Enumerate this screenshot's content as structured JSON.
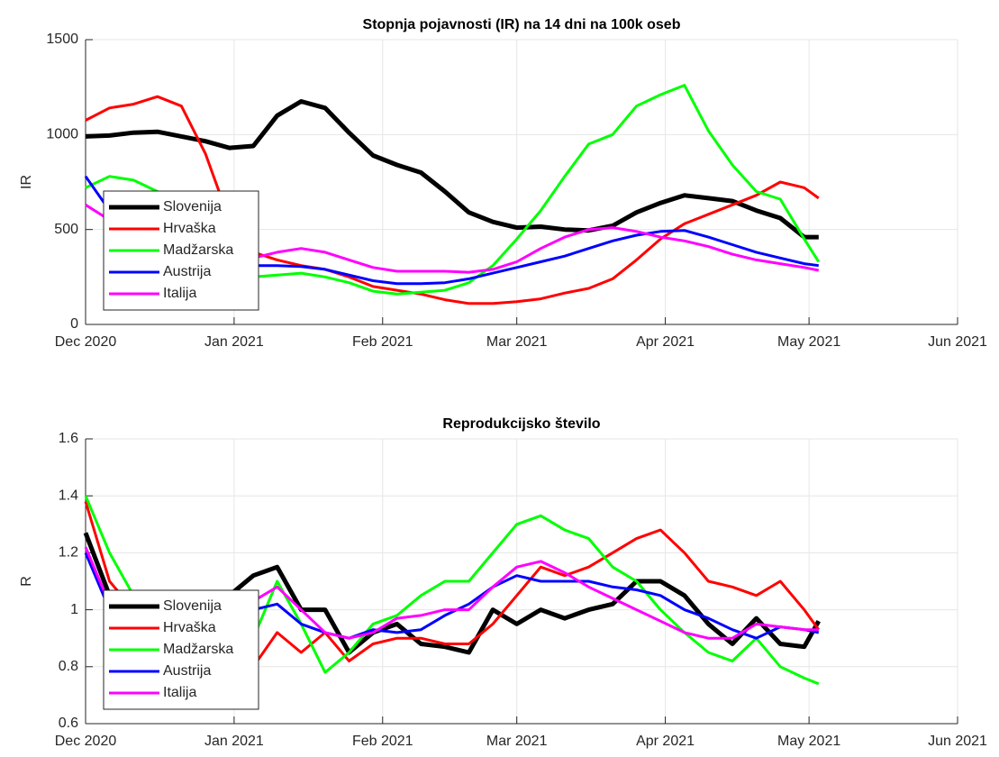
{
  "chart_data": [
    {
      "type": "line",
      "title": "Stopnja pojavnosti (IR) na 14 dni na 100k oseb",
      "ylabel": "IR",
      "x": [
        0,
        5,
        10,
        15,
        20,
        25,
        30,
        35,
        40,
        45,
        50,
        55,
        60,
        65,
        70,
        75,
        80,
        85,
        90,
        95,
        100,
        105,
        110,
        115,
        120,
        125,
        130,
        135,
        140,
        145,
        150,
        153
      ],
      "xlim": [
        0,
        182
      ],
      "xticks": [
        {
          "value": 0,
          "label": "Dec 2020"
        },
        {
          "value": 31,
          "label": "Jan 2021"
        },
        {
          "value": 62,
          "label": "Feb 2021"
        },
        {
          "value": 90,
          "label": "Mar 2021"
        },
        {
          "value": 121,
          "label": "Apr 2021"
        },
        {
          "value": 151,
          "label": "May 2021"
        },
        {
          "value": 182,
          "label": "Jun 2021"
        }
      ],
      "ylim": [
        0,
        1500
      ],
      "yticks": [
        0,
        500,
        1000,
        1500
      ],
      "grid": true,
      "legend": "southwest",
      "series": [
        {
          "name": "Slovenija",
          "color": "#000000",
          "values": [
            990,
            995,
            1010,
            1015,
            990,
            965,
            930,
            940,
            1100,
            1175,
            1140,
            1010,
            890,
            840,
            800,
            700,
            590,
            540,
            510,
            515,
            500,
            495,
            520,
            590,
            640,
            680,
            665,
            650,
            600,
            560,
            460,
            460
          ]
        },
        {
          "name": "Hrvaška",
          "color": "#ff0000",
          "values": [
            1075,
            1140,
            1160,
            1200,
            1150,
            900,
            550,
            380,
            340,
            310,
            290,
            250,
            200,
            180,
            160,
            130,
            110,
            110,
            120,
            135,
            165,
            190,
            240,
            340,
            450,
            530,
            580,
            630,
            680,
            750,
            720,
            665
          ]
        },
        {
          "name": "Madžarska",
          "color": "#00ff00",
          "values": [
            720,
            780,
            760,
            700,
            600,
            500,
            320,
            250,
            260,
            270,
            250,
            220,
            175,
            160,
            170,
            180,
            220,
            310,
            450,
            600,
            780,
            950,
            1000,
            1150,
            1210,
            1260,
            1020,
            840,
            700,
            660,
            450,
            330
          ]
        },
        {
          "name": "Austrija",
          "color": "#0000ff",
          "values": [
            780,
            600,
            480,
            380,
            340,
            330,
            320,
            310,
            310,
            305,
            290,
            260,
            230,
            215,
            215,
            220,
            240,
            270,
            300,
            330,
            360,
            400,
            440,
            470,
            490,
            495,
            460,
            420,
            380,
            350,
            320,
            310
          ]
        },
        {
          "name": "Italija",
          "color": "#ff00ff",
          "values": [
            630,
            550,
            500,
            460,
            420,
            380,
            370,
            350,
            380,
            400,
            380,
            340,
            300,
            280,
            280,
            280,
            275,
            290,
            330,
            400,
            460,
            500,
            510,
            490,
            460,
            440,
            410,
            370,
            340,
            320,
            300,
            285
          ]
        }
      ]
    },
    {
      "type": "line",
      "title": "Reprodukcijsko število",
      "ylabel": "R",
      "x": [
        0,
        5,
        10,
        15,
        20,
        25,
        30,
        35,
        40,
        45,
        50,
        55,
        60,
        65,
        70,
        75,
        80,
        85,
        90,
        95,
        100,
        105,
        110,
        115,
        120,
        125,
        130,
        135,
        140,
        145,
        150,
        153
      ],
      "xlim": [
        0,
        182
      ],
      "xticks": [
        {
          "value": 0,
          "label": "Dec 2020"
        },
        {
          "value": 31,
          "label": "Jan 2021"
        },
        {
          "value": 62,
          "label": "Feb 2021"
        },
        {
          "value": 90,
          "label": "Mar 2021"
        },
        {
          "value": 121,
          "label": "Apr 2021"
        },
        {
          "value": 151,
          "label": "May 2021"
        },
        {
          "value": 182,
          "label": "Jun 2021"
        }
      ],
      "ylim": [
        0.6,
        1.6
      ],
      "yticks": [
        0.6,
        0.8,
        1,
        1.2,
        1.4,
        1.6
      ],
      "grid": true,
      "legend": "southwest",
      "series": [
        {
          "name": "Slovenija",
          "color": "#000000",
          "values": [
            1.27,
            1.05,
            0.95,
            0.97,
            1.0,
            1.02,
            1.05,
            1.12,
            1.15,
            1.0,
            1.0,
            0.85,
            0.92,
            0.95,
            0.88,
            0.87,
            0.85,
            1.0,
            0.95,
            1.0,
            0.97,
            1.0,
            1.02,
            1.1,
            1.1,
            1.05,
            0.95,
            0.88,
            0.97,
            0.88,
            0.87,
            0.96
          ]
        },
        {
          "name": "Hrvaška",
          "color": "#ff0000",
          "values": [
            1.38,
            1.1,
            1.0,
            0.9,
            0.85,
            0.8,
            0.75,
            0.8,
            0.92,
            0.85,
            0.92,
            0.82,
            0.88,
            0.9,
            0.9,
            0.88,
            0.88,
            0.95,
            1.05,
            1.15,
            1.12,
            1.15,
            1.2,
            1.25,
            1.28,
            1.2,
            1.1,
            1.08,
            1.05,
            1.1,
            1.0,
            0.93
          ]
        },
        {
          "name": "Madžarska",
          "color": "#00ff00",
          "values": [
            1.4,
            1.2,
            1.05,
            0.95,
            0.9,
            0.85,
            0.82,
            0.9,
            1.1,
            0.95,
            0.78,
            0.85,
            0.95,
            0.98,
            1.05,
            1.1,
            1.1,
            1.2,
            1.3,
            1.33,
            1.28,
            1.25,
            1.15,
            1.1,
            1.0,
            0.92,
            0.85,
            0.82,
            0.9,
            0.8,
            0.76,
            0.74
          ]
        },
        {
          "name": "Austrija",
          "color": "#0000ff",
          "values": [
            1.2,
            1.0,
            0.95,
            0.95,
            0.97,
            1.0,
            1.0,
            1.0,
            1.02,
            0.95,
            0.92,
            0.9,
            0.93,
            0.92,
            0.93,
            0.98,
            1.02,
            1.08,
            1.12,
            1.1,
            1.1,
            1.1,
            1.08,
            1.07,
            1.05,
            1.0,
            0.97,
            0.93,
            0.9,
            0.94,
            0.93,
            0.92
          ]
        },
        {
          "name": "Italija",
          "color": "#ff00ff",
          "values": [
            1.22,
            1.02,
            0.98,
            0.98,
            1.0,
            1.02,
            1.03,
            1.03,
            1.08,
            1.0,
            0.92,
            0.9,
            0.92,
            0.97,
            0.98,
            1.0,
            1.0,
            1.08,
            1.15,
            1.17,
            1.13,
            1.08,
            1.04,
            1.0,
            0.96,
            0.92,
            0.9,
            0.9,
            0.95,
            0.94,
            0.93,
            0.93
          ]
        }
      ]
    }
  ]
}
